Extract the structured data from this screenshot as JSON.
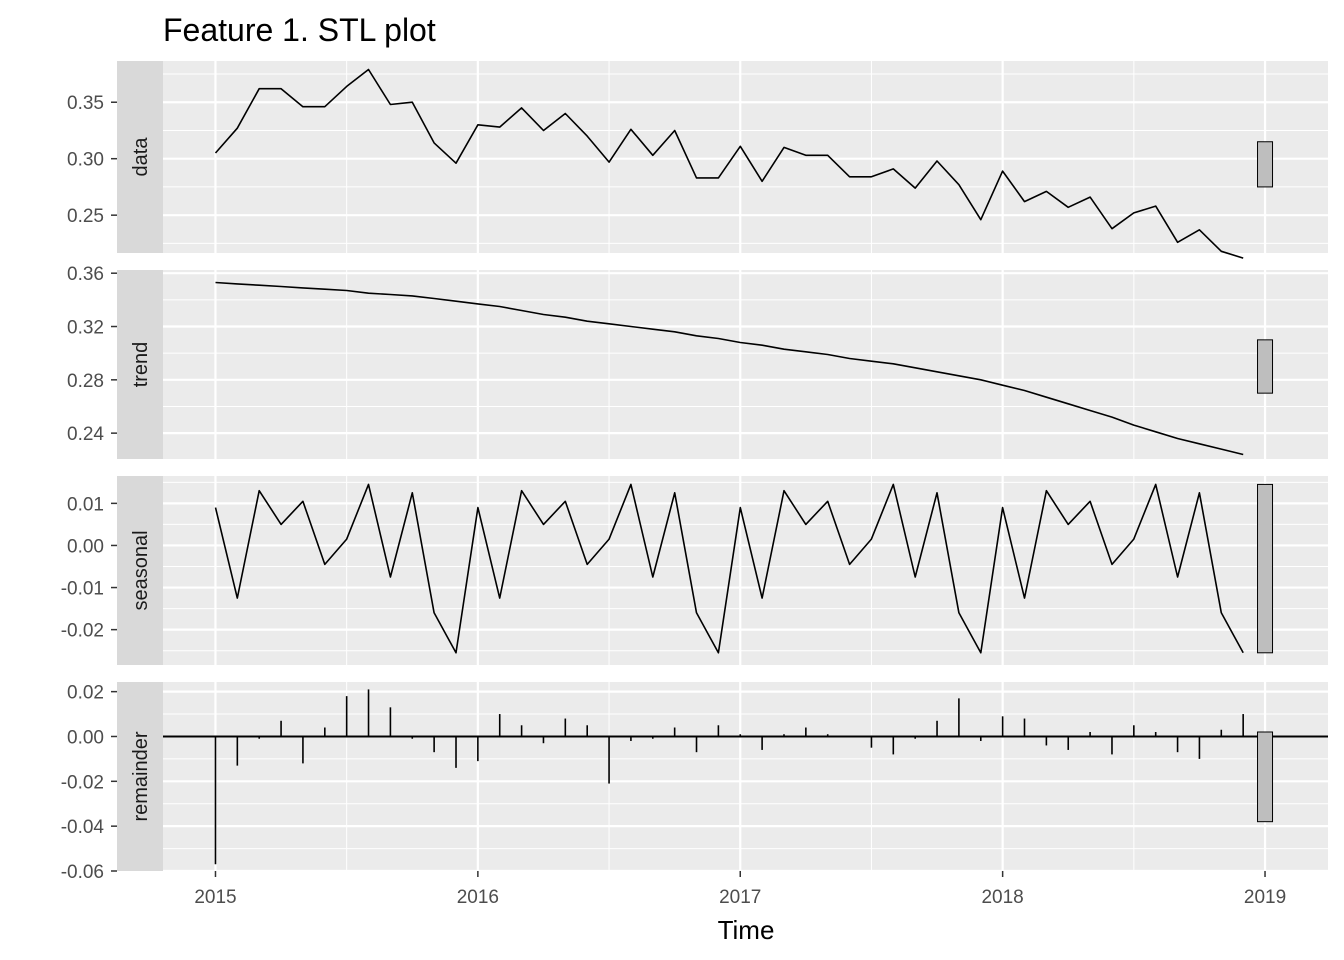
{
  "chart_data": {
    "type": "line",
    "title": "Feature 1. STL plot",
    "xlabel": "Time",
    "ylabel": "",
    "x_ticks": [
      "2015",
      "2016",
      "2017",
      "2018",
      "2019"
    ],
    "x_tick_values": [
      2015,
      2016,
      2017,
      2018,
      2019
    ],
    "xlim": [
      2014.8,
      2019.24
    ],
    "x": [
      2015.0,
      2015.0833,
      2015.1667,
      2015.25,
      2015.3333,
      2015.4167,
      2015.5,
      2015.5833,
      2015.6667,
      2015.75,
      2015.8333,
      2015.9167,
      2016.0,
      2016.0833,
      2016.1667,
      2016.25,
      2016.3333,
      2016.4167,
      2016.5,
      2016.5833,
      2016.6667,
      2016.75,
      2016.8333,
      2016.9167,
      2017.0,
      2017.0833,
      2017.1667,
      2017.25,
      2017.3333,
      2017.4167,
      2017.5,
      2017.5833,
      2017.6667,
      2017.75,
      2017.8333,
      2017.9167,
      2018.0,
      2018.0833,
      2018.1667,
      2018.25,
      2018.3333,
      2018.4167,
      2018.5,
      2018.5833,
      2018.6667,
      2018.75,
      2018.8333,
      2018.9167
    ],
    "grid": true,
    "legend": "none",
    "background_color": "#ebebeb",
    "grid_color": "#ffffff",
    "strip_color": "#d9d9d9",
    "line_color": "#000000",
    "range_bar_color": "#bebebe",
    "range_bar_x": 2019.0,
    "panels": [
      {
        "name": "data",
        "style": "line",
        "ylim": [
          0.2165,
          0.3865
        ],
        "y_ticks": [
          0.25,
          0.3,
          0.35
        ],
        "y_tick_labels": [
          "0.25",
          "0.30",
          "0.35"
        ],
        "range_bar": [
          0.275,
          0.315
        ],
        "values": [
          0.305,
          0.327,
          0.362,
          0.362,
          0.346,
          0.346,
          0.364,
          0.379,
          0.348,
          0.35,
          0.314,
          0.296,
          0.33,
          0.328,
          0.345,
          0.325,
          0.34,
          0.32,
          0.297,
          0.326,
          0.303,
          0.325,
          0.283,
          0.283,
          0.311,
          0.28,
          0.31,
          0.303,
          0.303,
          0.284,
          0.284,
          0.291,
          0.274,
          0.298,
          0.277,
          0.246,
          0.289,
          0.262,
          0.271,
          0.257,
          0.266,
          0.238,
          0.252,
          0.258,
          0.226,
          0.237,
          0.218,
          0.212
        ]
      },
      {
        "name": "trend",
        "style": "line",
        "ylim": [
          0.2206,
          0.3624
        ],
        "y_ticks": [
          0.24,
          0.28,
          0.32,
          0.36
        ],
        "y_tick_labels": [
          "0.24",
          "0.28",
          "0.32",
          "0.36"
        ],
        "range_bar": [
          0.27,
          0.31
        ],
        "values": [
          0.353,
          0.352,
          0.351,
          0.35,
          0.349,
          0.348,
          0.347,
          0.345,
          0.344,
          0.343,
          0.341,
          0.339,
          0.337,
          0.335,
          0.332,
          0.329,
          0.327,
          0.324,
          0.322,
          0.32,
          0.318,
          0.316,
          0.313,
          0.311,
          0.308,
          0.306,
          0.303,
          0.301,
          0.299,
          0.296,
          0.294,
          0.292,
          0.289,
          0.286,
          0.283,
          0.28,
          0.276,
          0.272,
          0.267,
          0.262,
          0.257,
          0.252,
          0.246,
          0.241,
          0.236,
          0.232,
          0.228,
          0.224
        ]
      },
      {
        "name": "seasonal",
        "style": "line",
        "ylim": [
          -0.0284,
          0.0165
        ],
        "y_ticks": [
          -0.02,
          -0.01,
          0.0,
          0.01
        ],
        "y_tick_labels": [
          "-0.02",
          "-0.01",
          "0.00",
          "0.01"
        ],
        "range_bar": [
          -0.0255,
          0.0145
        ],
        "values": [
          0.009,
          -0.0125,
          0.013,
          0.005,
          0.0105,
          -0.0045,
          0.0015,
          0.0145,
          -0.0075,
          0.0125,
          -0.016,
          -0.0255,
          0.009,
          -0.0125,
          0.013,
          0.005,
          0.0105,
          -0.0045,
          0.0015,
          0.0145,
          -0.0075,
          0.0125,
          -0.016,
          -0.0255,
          0.009,
          -0.0125,
          0.013,
          0.005,
          0.0105,
          -0.0045,
          0.0015,
          0.0145,
          -0.0075,
          0.0125,
          -0.016,
          -0.0255,
          0.009,
          -0.0125,
          0.013,
          0.005,
          0.0105,
          -0.0045,
          0.0015,
          0.0145,
          -0.0075,
          0.0125,
          -0.016,
          -0.0255
        ]
      },
      {
        "name": "remainder",
        "style": "bar",
        "ylim": [
          -0.06,
          0.0243
        ],
        "y_ticks": [
          -0.06,
          -0.04,
          -0.02,
          0.0,
          0.02
        ],
        "y_tick_labels": [
          "-0.06",
          "-0.04",
          "-0.02",
          "0.00",
          "0.02"
        ],
        "range_bar": [
          -0.038,
          0.002
        ],
        "zero_line": true,
        "values": [
          -0.057,
          -0.013,
          -0.001,
          0.007,
          -0.012,
          0.004,
          0.018,
          0.021,
          0.013,
          -0.001,
          -0.007,
          -0.014,
          -0.011,
          0.01,
          0.005,
          -0.003,
          0.008,
          0.005,
          -0.021,
          -0.002,
          -0.001,
          0.004,
          -0.007,
          0.005,
          0.001,
          -0.006,
          0.001,
          0.004,
          0.001,
          0.0,
          -0.005,
          -0.008,
          -0.001,
          0.007,
          0.017,
          -0.002,
          0.009,
          0.008,
          -0.004,
          -0.006,
          0.002,
          -0.008,
          0.005,
          0.002,
          -0.007,
          -0.01,
          0.003,
          0.01
        ]
      }
    ]
  }
}
